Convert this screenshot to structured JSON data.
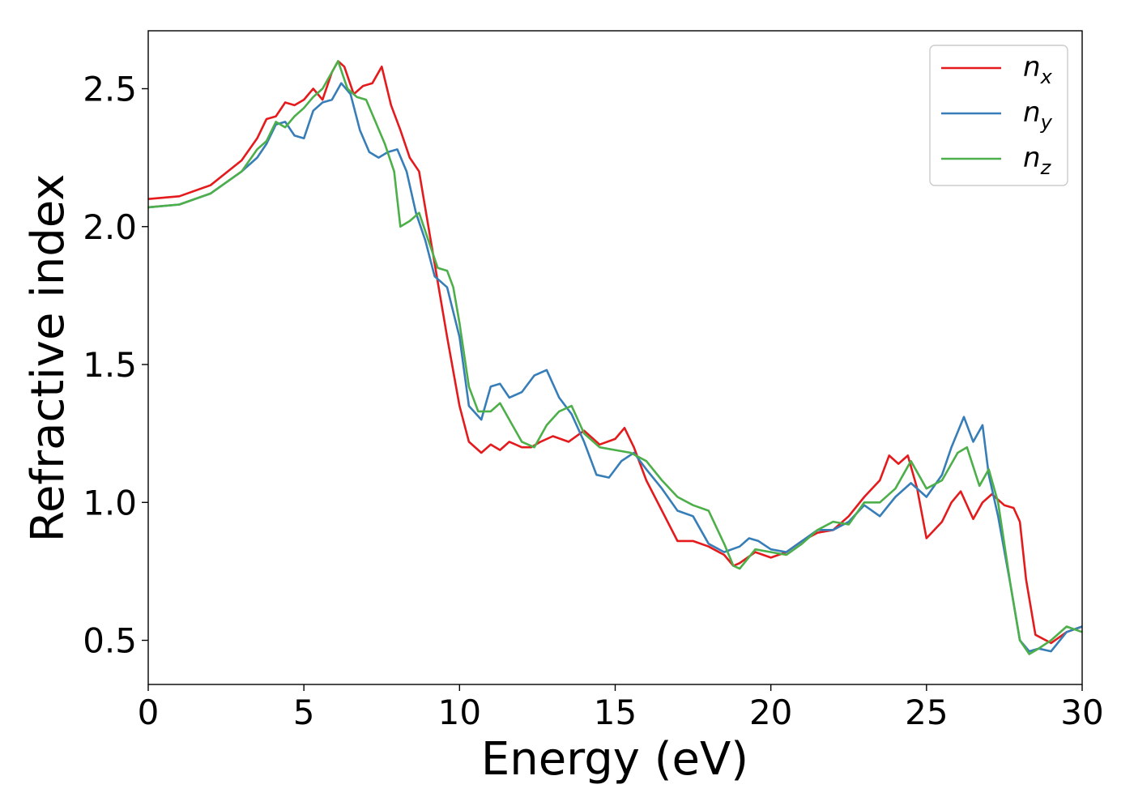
{
  "chart_data": {
    "type": "line",
    "xlabel": "Energy (eV)",
    "ylabel": "Refractive index",
    "xlim": [
      0,
      30
    ],
    "ylim": [
      0.34,
      2.71
    ],
    "xticks": [
      0,
      5,
      10,
      15,
      20,
      25,
      30
    ],
    "xtick_labels": [
      "0",
      "5",
      "10",
      "15",
      "20",
      "25",
      "30"
    ],
    "yticks": [
      0.5,
      1.0,
      1.5,
      2.0,
      2.5
    ],
    "ytick_labels": [
      "0.5",
      "1.0",
      "1.5",
      "2.0",
      "2.5"
    ],
    "grid": false,
    "legend_position": "top-right",
    "series": [
      {
        "name": "n",
        "subscript": "x",
        "color": "#e41a1c",
        "x": [
          0,
          1,
          2,
          3,
          3.5,
          3.8,
          4.1,
          4.4,
          4.7,
          5.0,
          5.3,
          5.6,
          5.9,
          6.1,
          6.3,
          6.6,
          6.9,
          7.2,
          7.5,
          7.8,
          8.1,
          8.4,
          8.7,
          9.0,
          9.3,
          9.6,
          10.0,
          10.3,
          10.7,
          11.0,
          11.3,
          11.6,
          12.0,
          12.3,
          12.6,
          13.0,
          13.5,
          14.0,
          14.5,
          15.0,
          15.3,
          15.6,
          16.0,
          16.5,
          17.0,
          17.5,
          18.0,
          18.5,
          18.8,
          19.0,
          19.5,
          20.0,
          20.5,
          21.0,
          21.5,
          22.0,
          22.5,
          23.0,
          23.5,
          23.8,
          24.1,
          24.4,
          24.7,
          25.0,
          25.5,
          25.8,
          26.1,
          26.5,
          26.8,
          27.1,
          27.5,
          27.8,
          28.0,
          28.2,
          28.5,
          29.0,
          29.5,
          30
        ],
        "y": [
          2.1,
          2.11,
          2.15,
          2.24,
          2.32,
          2.39,
          2.4,
          2.45,
          2.44,
          2.46,
          2.5,
          2.46,
          2.56,
          2.6,
          2.58,
          2.48,
          2.51,
          2.52,
          2.58,
          2.44,
          2.35,
          2.25,
          2.2,
          2.0,
          1.8,
          1.6,
          1.35,
          1.22,
          1.18,
          1.21,
          1.19,
          1.22,
          1.2,
          1.2,
          1.22,
          1.24,
          1.22,
          1.26,
          1.21,
          1.23,
          1.27,
          1.2,
          1.08,
          0.97,
          0.86,
          0.86,
          0.84,
          0.81,
          0.77,
          0.78,
          0.82,
          0.8,
          0.82,
          0.86,
          0.89,
          0.9,
          0.95,
          1.02,
          1.08,
          1.17,
          1.14,
          1.17,
          1.05,
          0.87,
          0.93,
          1.0,
          1.04,
          0.94,
          1.0,
          1.03,
          0.99,
          0.98,
          0.93,
          0.72,
          0.52,
          0.49,
          0.53,
          0.55
        ]
      },
      {
        "name": "n",
        "subscript": "y",
        "color": "#377eb8",
        "x": [
          0,
          1,
          2,
          3,
          3.5,
          3.8,
          4.1,
          4.4,
          4.7,
          5.0,
          5.3,
          5.6,
          5.9,
          6.2,
          6.5,
          6.8,
          7.1,
          7.4,
          7.7,
          8.0,
          8.3,
          8.6,
          8.9,
          9.2,
          9.6,
          10.0,
          10.3,
          10.7,
          11.0,
          11.3,
          11.6,
          12.0,
          12.4,
          12.8,
          13.2,
          13.6,
          14.0,
          14.4,
          14.8,
          15.2,
          15.6,
          16.0,
          16.5,
          17.0,
          17.5,
          18.0,
          18.5,
          19.0,
          19.3,
          19.6,
          20.0,
          20.5,
          21.0,
          21.5,
          22.0,
          22.5,
          23.0,
          23.5,
          24.0,
          24.5,
          25.0,
          25.5,
          25.8,
          26.2,
          26.5,
          26.8,
          27.0,
          27.3,
          27.7,
          28.0,
          28.3,
          28.6,
          29.0,
          29.5,
          30
        ],
        "y": [
          2.07,
          2.08,
          2.12,
          2.2,
          2.25,
          2.3,
          2.37,
          2.38,
          2.33,
          2.32,
          2.42,
          2.45,
          2.46,
          2.52,
          2.48,
          2.35,
          2.27,
          2.25,
          2.27,
          2.28,
          2.2,
          2.05,
          1.95,
          1.82,
          1.78,
          1.6,
          1.35,
          1.3,
          1.42,
          1.43,
          1.38,
          1.4,
          1.46,
          1.48,
          1.38,
          1.32,
          1.22,
          1.1,
          1.09,
          1.15,
          1.18,
          1.12,
          1.05,
          0.97,
          0.95,
          0.85,
          0.82,
          0.84,
          0.87,
          0.86,
          0.83,
          0.82,
          0.86,
          0.9,
          0.9,
          0.93,
          0.99,
          0.95,
          1.02,
          1.07,
          1.02,
          1.1,
          1.2,
          1.31,
          1.22,
          1.28,
          1.1,
          0.95,
          0.7,
          0.5,
          0.46,
          0.47,
          0.46,
          0.53,
          0.55
        ]
      },
      {
        "name": "n",
        "subscript": "z",
        "color": "#4daf4a",
        "x": [
          0,
          1,
          2,
          3,
          3.5,
          3.8,
          4.1,
          4.4,
          4.7,
          5.0,
          5.3,
          5.6,
          5.9,
          6.1,
          6.4,
          6.7,
          7.0,
          7.3,
          7.6,
          7.9,
          8.1,
          8.4,
          8.7,
          9.0,
          9.3,
          9.6,
          9.8,
          10.0,
          10.3,
          10.6,
          11.0,
          11.3,
          11.6,
          12.0,
          12.4,
          12.8,
          13.2,
          13.6,
          14.0,
          14.5,
          15.0,
          15.5,
          16.0,
          16.5,
          17.0,
          17.5,
          18.0,
          18.5,
          18.8,
          19.0,
          19.5,
          20.0,
          20.5,
          21.0,
          21.5,
          22.0,
          22.5,
          23.0,
          23.5,
          24.0,
          24.5,
          25.0,
          25.5,
          26.0,
          26.3,
          26.7,
          27.0,
          27.3,
          27.7,
          28.0,
          28.3,
          28.6,
          29.0,
          29.5,
          30
        ],
        "y": [
          2.07,
          2.08,
          2.12,
          2.2,
          2.28,
          2.31,
          2.38,
          2.36,
          2.4,
          2.43,
          2.47,
          2.5,
          2.56,
          2.6,
          2.5,
          2.47,
          2.46,
          2.38,
          2.3,
          2.2,
          2.0,
          2.02,
          2.05,
          1.95,
          1.85,
          1.84,
          1.78,
          1.65,
          1.42,
          1.33,
          1.33,
          1.36,
          1.3,
          1.22,
          1.2,
          1.28,
          1.33,
          1.35,
          1.25,
          1.2,
          1.19,
          1.18,
          1.15,
          1.08,
          1.02,
          0.99,
          0.97,
          0.85,
          0.77,
          0.76,
          0.83,
          0.82,
          0.81,
          0.85,
          0.9,
          0.93,
          0.92,
          1.0,
          1.0,
          1.05,
          1.15,
          1.05,
          1.08,
          1.18,
          1.2,
          1.06,
          1.12,
          1.0,
          0.7,
          0.5,
          0.45,
          0.47,
          0.5,
          0.55,
          0.53
        ]
      }
    ]
  }
}
